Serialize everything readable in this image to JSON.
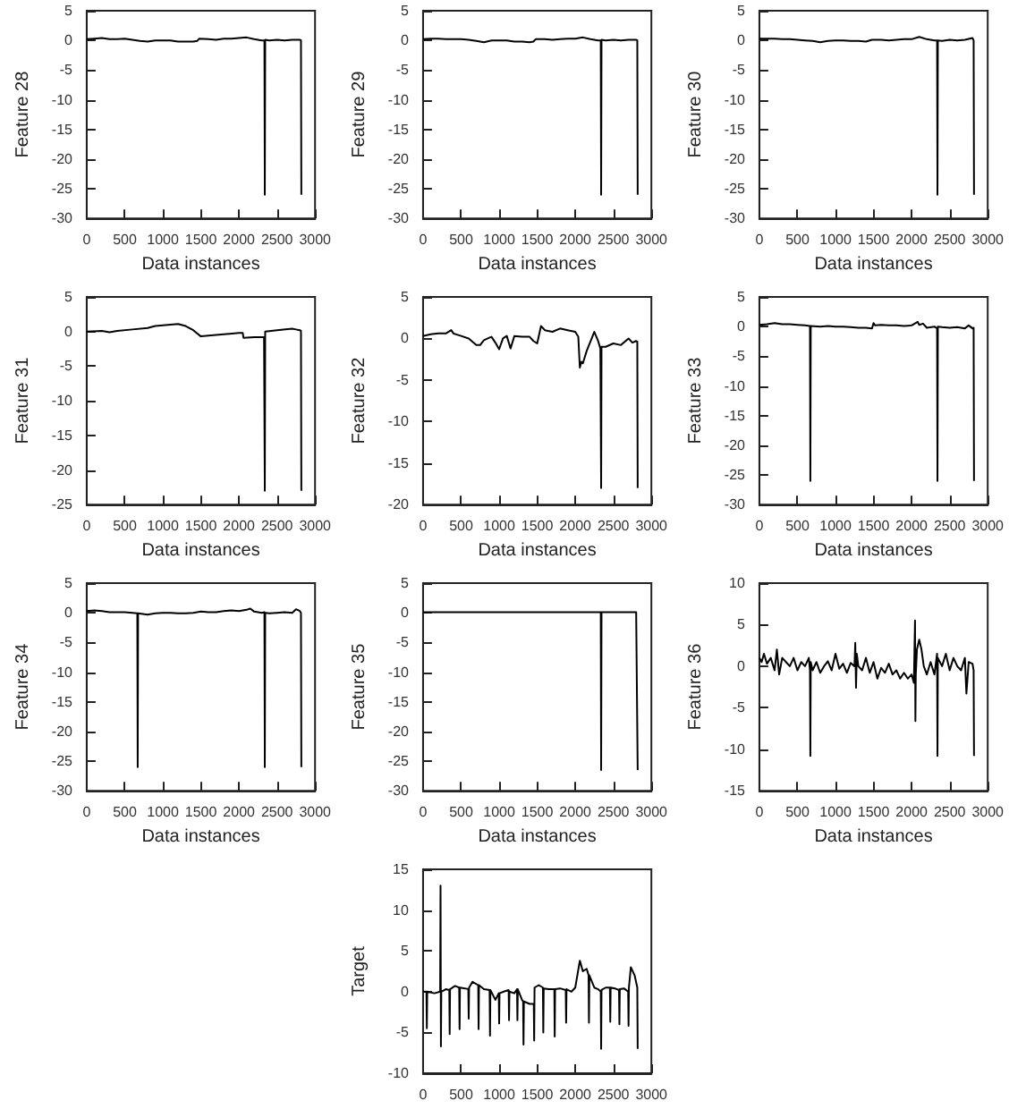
{
  "chart_data": [
    {
      "type": "line",
      "xlabel": "Data instances",
      "ylabel": "Feature 28",
      "xlim": [
        0,
        3000
      ],
      "xticks": [
        0,
        500,
        1000,
        1500,
        2000,
        2500,
        3000
      ],
      "ylim": [
        -30,
        5
      ],
      "yticks": [
        -30,
        -25,
        -20,
        -15,
        -10,
        -5,
        0,
        5
      ],
      "marker": "none",
      "series": [
        {
          "color": "#000000",
          "x": [
            0,
            100,
            200,
            300,
            400,
            500,
            600,
            700,
            800,
            900,
            1000,
            1100,
            1200,
            1300,
            1400,
            1450,
            1480,
            1600,
            1700,
            1800,
            1900,
            2000,
            2100,
            2200,
            2300,
            2335,
            2340,
            2345,
            2400,
            2500,
            2600,
            2700,
            2800,
            2815,
            2820
          ],
          "values": [
            0.2,
            0.3,
            0.4,
            0.2,
            0.2,
            0.3,
            0.1,
            -0.1,
            -0.2,
            0,
            0,
            0,
            -0.2,
            -0.2,
            -0.2,
            -0.1,
            0.3,
            0.2,
            0.1,
            0.3,
            0.3,
            0.4,
            0.5,
            0.2,
            0,
            0,
            -26,
            0.1,
            0,
            0.1,
            0,
            0.1,
            0.1,
            0,
            -26
          ]
        }
      ]
    },
    {
      "type": "line",
      "xlabel": "Data instances",
      "ylabel": "Feature 29",
      "xlim": [
        0,
        3000
      ],
      "xticks": [
        0,
        500,
        1000,
        1500,
        2000,
        2500,
        3000
      ],
      "ylim": [
        -30,
        5
      ],
      "yticks": [
        -30,
        -25,
        -20,
        -15,
        -10,
        -5,
        0,
        5
      ],
      "marker": "none",
      "series": [
        {
          "color": "#000000",
          "x": [
            0,
            100,
            200,
            300,
            400,
            500,
            600,
            700,
            800,
            900,
            1000,
            1100,
            1200,
            1300,
            1400,
            1450,
            1480,
            1600,
            1700,
            1800,
            1900,
            2000,
            2100,
            2200,
            2300,
            2335,
            2340,
            2345,
            2400,
            2500,
            2600,
            2700,
            2800,
            2815,
            2820
          ],
          "values": [
            0.2,
            0.3,
            0.3,
            0.2,
            0.2,
            0.2,
            0.1,
            -0.1,
            -0.3,
            0,
            0,
            0,
            -0.2,
            -0.2,
            -0.3,
            -0.2,
            0.2,
            0.2,
            0.1,
            0.2,
            0.3,
            0.3,
            0.5,
            0.2,
            0,
            0,
            -26,
            0.1,
            0,
            0.1,
            0,
            0.1,
            0.1,
            0,
            -26
          ]
        }
      ]
    },
    {
      "type": "line",
      "xlabel": "Data instances",
      "ylabel": "Feature 30",
      "xlim": [
        0,
        3000
      ],
      "xticks": [
        0,
        500,
        1000,
        1500,
        2000,
        2500,
        3000
      ],
      "ylim": [
        -30,
        5
      ],
      "yticks": [
        -30,
        -25,
        -20,
        -15,
        -10,
        -5,
        0,
        5
      ],
      "marker": "none",
      "series": [
        {
          "color": "#000000",
          "x": [
            0,
            100,
            200,
            300,
            400,
            500,
            600,
            700,
            800,
            900,
            1000,
            1100,
            1200,
            1300,
            1400,
            1450,
            1480,
            1600,
            1700,
            1800,
            1900,
            2000,
            2100,
            2200,
            2300,
            2335,
            2340,
            2345,
            2400,
            2500,
            2600,
            2700,
            2800,
            2815,
            2820
          ],
          "values": [
            0.3,
            0.3,
            0.3,
            0.2,
            0.2,
            0.1,
            0,
            -0.1,
            -0.3,
            -0.1,
            0,
            0,
            -0.1,
            -0.1,
            -0.2,
            0,
            0.1,
            0.1,
            0,
            0.1,
            0.2,
            0.2,
            0.6,
            0.2,
            0,
            0,
            -26,
            0,
            -0.1,
            0.1,
            0,
            0.1,
            0.4,
            0,
            -26
          ]
        }
      ]
    },
    {
      "type": "line",
      "xlabel": "Data instances",
      "ylabel": "Feature 31",
      "xlim": [
        0,
        3000
      ],
      "xticks": [
        0,
        500,
        1000,
        1500,
        2000,
        2500,
        3000
      ],
      "ylim": [
        -25,
        5
      ],
      "yticks": [
        -25,
        -20,
        -15,
        -10,
        -5,
        0,
        5
      ],
      "marker": "none",
      "series": [
        {
          "color": "#000000",
          "x": [
            0,
            200,
            300,
            400,
            600,
            800,
            900,
            1000,
            1100,
            1200,
            1300,
            1400,
            1500,
            1600,
            1800,
            2000,
            2050,
            2060,
            2200,
            2330,
            2340,
            2345,
            2500,
            2700,
            2750,
            2800,
            2815,
            2820
          ],
          "values": [
            0,
            0.1,
            -0.1,
            0.1,
            0.3,
            0.5,
            0.8,
            0.9,
            1,
            1.1,
            0.8,
            0.2,
            -0.7,
            -0.6,
            -0.4,
            -0.2,
            -0.2,
            -0.9,
            -0.8,
            -0.8,
            -23,
            0,
            0.2,
            0.4,
            0.3,
            0.2,
            0.1,
            -23
          ]
        }
      ]
    },
    {
      "type": "line",
      "xlabel": "Data instances",
      "ylabel": "Feature 32",
      "xlim": [
        0,
        3000
      ],
      "xticks": [
        0,
        500,
        1000,
        1500,
        2000,
        2500,
        3000
      ],
      "ylim": [
        -20,
        5
      ],
      "yticks": [
        -20,
        -15,
        -10,
        -5,
        0,
        5
      ],
      "marker": "none",
      "series": [
        {
          "color": "#000000",
          "x": [
            0,
            100,
            200,
            300,
            370,
            400,
            500,
            600,
            700,
            750,
            800,
            850,
            900,
            950,
            1000,
            1050,
            1100,
            1150,
            1200,
            1300,
            1400,
            1450,
            1500,
            1550,
            1600,
            1700,
            1800,
            1900,
            2000,
            2040,
            2060,
            2080,
            2100,
            2150,
            2250,
            2300,
            2330,
            2340,
            2345,
            2400,
            2500,
            2600,
            2700,
            2750,
            2800,
            2815,
            2820
          ],
          "values": [
            0.3,
            0.5,
            0.6,
            0.6,
            1,
            0.6,
            0.3,
            0,
            -0.8,
            -0.8,
            -0.2,
            0,
            0.2,
            -0.5,
            -1.3,
            0,
            0.3,
            -1.2,
            0.3,
            0.2,
            0.2,
            -0.3,
            -0.6,
            1.5,
            1,
            0.8,
            1.2,
            1,
            0.8,
            0.2,
            -3.5,
            -2.8,
            -3,
            -1.5,
            0.8,
            -0.3,
            -1.2,
            -18,
            -1,
            -1,
            -0.6,
            -0.8,
            0,
            -0.5,
            -0.3,
            -0.4,
            -18
          ]
        }
      ]
    },
    {
      "type": "line",
      "xlabel": "Data instances",
      "ylabel": "Feature 33",
      "xlim": [
        0,
        3000
      ],
      "xticks": [
        0,
        500,
        1000,
        1500,
        2000,
        2500,
        3000
      ],
      "ylim": [
        -30,
        5
      ],
      "yticks": [
        -30,
        -25,
        -20,
        -15,
        -10,
        -5,
        0,
        5
      ],
      "marker": "none",
      "series": [
        {
          "color": "#000000",
          "x": [
            0,
            100,
            200,
            300,
            400,
            500,
            600,
            665,
            670,
            675,
            800,
            900,
            1000,
            1100,
            1200,
            1300,
            1400,
            1480,
            1500,
            1520,
            1600,
            1700,
            1800,
            1900,
            2000,
            2080,
            2100,
            2150,
            2200,
            2300,
            2335,
            2340,
            2345,
            2400,
            2500,
            2600,
            2700,
            2750,
            2800,
            2815,
            2820
          ],
          "values": [
            0.3,
            0.4,
            0.6,
            0.4,
            0.4,
            0.3,
            0.2,
            0.1,
            -26,
            0.1,
            0,
            0.1,
            0,
            0,
            -0.1,
            -0.2,
            -0.2,
            -0.3,
            0.6,
            0.2,
            0.3,
            0.2,
            0.2,
            0.1,
            0.2,
            0.8,
            0.3,
            0.5,
            -0.2,
            0,
            -0.3,
            -26,
            0,
            -0.1,
            -0.2,
            -0.1,
            -0.3,
            0.2,
            -0.3,
            -0.2,
            -26
          ]
        }
      ]
    },
    {
      "type": "line",
      "xlabel": "Data instances",
      "ylabel": "Feature 34",
      "xlim": [
        0,
        3000
      ],
      "xticks": [
        0,
        500,
        1000,
        1500,
        2000,
        2500,
        3000
      ],
      "ylim": [
        -30,
        5
      ],
      "yticks": [
        -30,
        -25,
        -20,
        -15,
        -10,
        -5,
        0,
        5
      ],
      "marker": "none",
      "series": [
        {
          "color": "#000000",
          "x": [
            0,
            100,
            200,
            300,
            400,
            500,
            600,
            665,
            670,
            675,
            800,
            900,
            1000,
            1100,
            1200,
            1300,
            1400,
            1500,
            1600,
            1700,
            1800,
            1900,
            2000,
            2100,
            2150,
            2200,
            2300,
            2335,
            2340,
            2345,
            2400,
            2500,
            2600,
            2700,
            2750,
            2800,
            2815,
            2820
          ],
          "values": [
            0.3,
            0.4,
            0.3,
            0.1,
            0.1,
            0.1,
            0,
            -0.1,
            -26,
            -0.1,
            -0.3,
            -0.1,
            0,
            0,
            -0.1,
            -0.1,
            0,
            0.2,
            0.1,
            0.1,
            0.3,
            0.4,
            0.3,
            0.5,
            0.7,
            0.2,
            0,
            0.1,
            -26,
            0,
            -0.1,
            0,
            0.1,
            0,
            0.6,
            0.3,
            0,
            -26
          ]
        }
      ]
    },
    {
      "type": "line",
      "xlabel": "Data instances",
      "ylabel": "Feature 35",
      "xlim": [
        0,
        3000
      ],
      "xticks": [
        0,
        500,
        1000,
        1500,
        2000,
        2500,
        3000
      ],
      "ylim": [
        -30,
        5
      ],
      "yticks": [
        -30,
        -25,
        -20,
        -15,
        -10,
        -5,
        0,
        5
      ],
      "marker": "none",
      "series": [
        {
          "color": "#000000",
          "x": [
            0,
            100,
            500,
            1000,
            1500,
            2000,
            2300,
            2335,
            2340,
            2345,
            2500,
            2700,
            2800,
            2815,
            2820
          ],
          "values": [
            0.1,
            0.1,
            0.1,
            0.1,
            0.1,
            0.1,
            0.1,
            0.1,
            -26.5,
            0.1,
            0.1,
            0.1,
            0.1,
            0.1,
            -26.5
          ]
        }
      ]
    },
    {
      "type": "line",
      "xlabel": "Data instances",
      "ylabel": "Feature 36",
      "xlim": [
        0,
        3000
      ],
      "xticks": [
        0,
        500,
        1000,
        1500,
        2000,
        2500,
        3000
      ],
      "ylim": [
        -15,
        10
      ],
      "yticks": [
        -15,
        -10,
        -5,
        0,
        5,
        10
      ],
      "marker": "none",
      "series": [
        {
          "color": "#000000",
          "x": [
            0,
            30,
            60,
            100,
            150,
            200,
            230,
            260,
            300,
            350,
            400,
            450,
            500,
            550,
            600,
            650,
            665,
            670,
            675,
            700,
            750,
            800,
            850,
            900,
            950,
            1000,
            1050,
            1100,
            1150,
            1200,
            1250,
            1260,
            1270,
            1280,
            1300,
            1350,
            1400,
            1450,
            1500,
            1550,
            1600,
            1650,
            1700,
            1750,
            1800,
            1850,
            1900,
            1950,
            2000,
            2030,
            2045,
            2050,
            2055,
            2070,
            2100,
            2130,
            2160,
            2200,
            2250,
            2300,
            2335,
            2340,
            2345,
            2400,
            2450,
            2500,
            2550,
            2600,
            2650,
            2700,
            2720,
            2750,
            2800,
            2815,
            2820
          ],
          "values": [
            1,
            0.5,
            1.5,
            0.3,
            1,
            -0.5,
            2,
            -1,
            1,
            0.5,
            0,
            1,
            -0.5,
            0.5,
            0,
            1,
            -0.5,
            -10.8,
            0.5,
            -0.5,
            0.5,
            -0.8,
            0,
            0.6,
            -0.5,
            1.5,
            -0.3,
            0.3,
            -0.8,
            0.4,
            0,
            2.8,
            -2.6,
            1.5,
            0,
            -0.5,
            1,
            -0.8,
            0.5,
            -1.5,
            -0.2,
            -0.8,
            0.3,
            -1,
            -0.5,
            -1.5,
            -0.8,
            -1.5,
            -1,
            -2,
            5.5,
            -6.6,
            -1,
            2,
            3.2,
            2,
            0,
            -1,
            0.5,
            -1,
            1.5,
            -10.8,
            1,
            0,
            1.5,
            -0.5,
            1,
            0,
            -0.5,
            1,
            -3.3,
            0.5,
            0.3,
            -0.5,
            -10.8
          ]
        }
      ]
    },
    {
      "type": "line",
      "ylabel": "Target",
      "xlim": [
        0,
        3000
      ],
      "xticks": [
        0,
        500,
        1000,
        1500,
        2000,
        2500,
        3000
      ],
      "ylim": [
        -10,
        15
      ],
      "yticks": [
        -10,
        -5,
        0,
        5,
        10,
        15
      ],
      "marker": "none",
      "series": [
        {
          "color": "#000000",
          "x": [
            0,
            45,
            50,
            55,
            150,
            225,
            230,
            235,
            240,
            300,
            345,
            350,
            355,
            420,
            475,
            480,
            485,
            550,
            595,
            600,
            605,
            650,
            725,
            730,
            735,
            800,
            875,
            880,
            885,
            950,
            995,
            1000,
            1005,
            1060,
            1125,
            1130,
            1135,
            1200,
            1235,
            1240,
            1245,
            1300,
            1315,
            1320,
            1325,
            1400,
            1455,
            1460,
            1465,
            1520,
            1575,
            1580,
            1585,
            1650,
            1725,
            1730,
            1735,
            1800,
            1875,
            1880,
            1885,
            1950,
            2000,
            2060,
            2100,
            2150,
            2175,
            2180,
            2185,
            2250,
            2300,
            2335,
            2340,
            2345,
            2400,
            2455,
            2460,
            2465,
            2520,
            2575,
            2580,
            2585,
            2640,
            2695,
            2700,
            2705,
            2730,
            2780,
            2815,
            2820
          ],
          "values": [
            0,
            0,
            -4.5,
            0,
            -0.2,
            0,
            13,
            -6.7,
            0,
            0.3,
            0.2,
            -5.2,
            0.3,
            0.7,
            0.5,
            -4.6,
            0.5,
            0.4,
            0.3,
            -3.3,
            0.5,
            1.2,
            0.8,
            -4.6,
            0.8,
            0.3,
            0.2,
            -5.4,
            0.2,
            -1,
            -0.2,
            -3.9,
            -0.2,
            0,
            0.2,
            -3.5,
            0,
            -0.2,
            0.3,
            -3.5,
            0.3,
            -1,
            -1.2,
            -6.5,
            -1.2,
            -1.5,
            -1.5,
            -6,
            0.5,
            0.8,
            0.5,
            -5,
            0.4,
            0.3,
            0.3,
            -5.5,
            0.3,
            0.4,
            0.2,
            -3.8,
            0.3,
            0,
            0.5,
            3.8,
            2.5,
            2.8,
            2,
            -3.8,
            2,
            0.5,
            0.3,
            0,
            -7,
            0.2,
            0.5,
            0.5,
            -3.7,
            0.5,
            0.4,
            0.2,
            -4,
            0.3,
            0.4,
            0,
            -4.2,
            0.5,
            3,
            2,
            0.5,
            -7
          ]
        }
      ]
    }
  ]
}
